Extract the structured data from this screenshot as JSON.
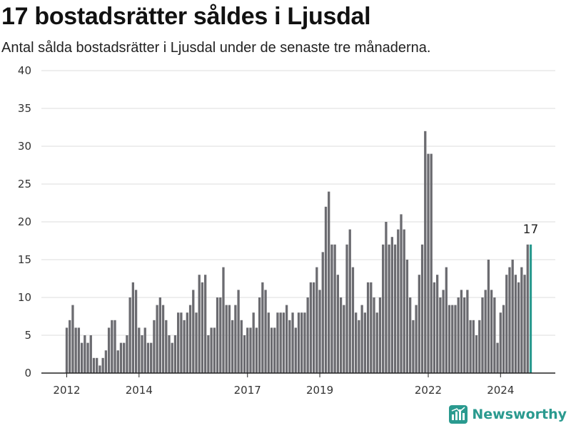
{
  "title": "17 bostadsrätter såldes i Ljusdal",
  "subtitle": "Antal sålda bostadsrätter i Ljusdal under de senaste tre månaderna.",
  "brand": "Newsworthy",
  "colors": {
    "bar": "#6b6b70",
    "highlight": "#2a9a8f",
    "grid": "#dddddd",
    "axis": "#222222"
  },
  "chart_data": {
    "type": "bar",
    "title": "17 bostadsrätter såldes i Ljusdal",
    "xlabel": "",
    "ylabel": "",
    "ylim": [
      0,
      40
    ],
    "yticks": [
      0,
      5,
      10,
      15,
      20,
      25,
      30,
      35,
      40
    ],
    "xticks": [
      "2012",
      "2014",
      "2017",
      "2019",
      "2022",
      "2024"
    ],
    "grid": true,
    "start": "2012-01",
    "frequency": "monthly",
    "values": [
      6,
      7,
      9,
      6,
      6,
      4,
      5,
      4,
      5,
      2,
      2,
      1,
      2,
      3,
      6,
      7,
      7,
      3,
      4,
      4,
      5,
      10,
      12,
      11,
      6,
      5,
      6,
      4,
      4,
      7,
      9,
      10,
      9,
      7,
      5,
      4,
      5,
      8,
      8,
      7,
      8,
      9,
      11,
      8,
      13,
      12,
      13,
      5,
      6,
      6,
      10,
      10,
      14,
      9,
      9,
      7,
      9,
      11,
      7,
      5,
      6,
      6,
      8,
      6,
      10,
      12,
      11,
      8,
      6,
      6,
      8,
      8,
      8,
      9,
      7,
      8,
      6,
      8,
      8,
      8,
      10,
      12,
      12,
      14,
      11,
      16,
      22,
      24,
      17,
      17,
      13,
      10,
      9,
      17,
      19,
      14,
      8,
      7,
      9,
      8,
      12,
      12,
      10,
      8,
      10,
      17,
      20,
      17,
      18,
      17,
      19,
      21,
      19,
      15,
      10,
      7,
      9,
      13,
      17,
      32,
      29,
      29,
      12,
      13,
      10,
      11,
      14,
      9,
      9,
      9,
      10,
      11,
      10,
      11,
      7,
      7,
      5,
      7,
      10,
      11,
      15,
      11,
      10,
      4,
      8,
      9,
      13,
      14,
      15,
      13,
      12,
      14,
      13,
      17,
      17
    ],
    "last_value_label": "17"
  }
}
